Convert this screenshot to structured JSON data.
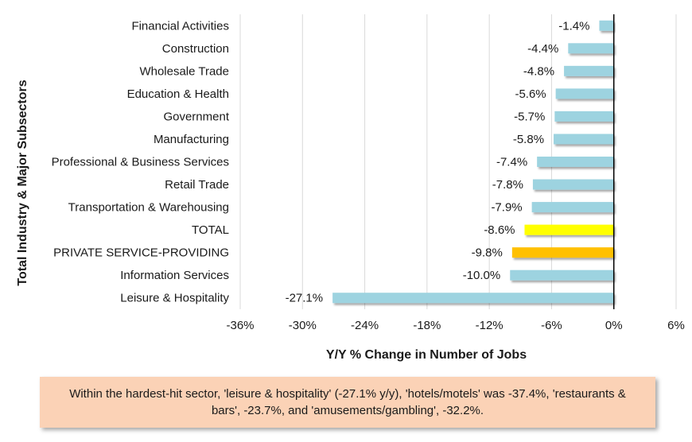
{
  "chart_data": {
    "type": "bar",
    "orientation": "horizontal",
    "categories": [
      "Financial Activities",
      "Construction",
      "Wholesale Trade",
      "Education & Health",
      "Government",
      "Manufacturing",
      "Professional & Business Services",
      "Retail Trade",
      "Transportation & Warehousing",
      "TOTAL",
      "PRIVATE SERVICE-PROVIDING",
      "Information Services",
      "Leisure & Hospitality"
    ],
    "values": [
      -1.4,
      -4.4,
      -4.8,
      -5.6,
      -5.7,
      -5.8,
      -7.4,
      -7.8,
      -7.9,
      -8.6,
      -9.8,
      -10.0,
      -27.1
    ],
    "data_labels": [
      "-1.4%",
      "-4.4%",
      "-4.8%",
      "-5.6%",
      "-5.7%",
      "-5.8%",
      "-7.4%",
      "-7.8%",
      "-7.9%",
      "-8.6%",
      "-9.8%",
      "-10.0%",
      "-27.1%"
    ],
    "bar_colors": [
      "#9dd3e0",
      "#9dd3e0",
      "#9dd3e0",
      "#9dd3e0",
      "#9dd3e0",
      "#9dd3e0",
      "#9dd3e0",
      "#9dd3e0",
      "#9dd3e0",
      "#ffff00",
      "#ffc000",
      "#9dd3e0",
      "#9dd3e0"
    ],
    "xlim": [
      -36,
      6
    ],
    "xticks": [
      -36,
      -30,
      -24,
      -18,
      -12,
      -6,
      0,
      6
    ],
    "xtick_labels": [
      "-36%",
      "-30%",
      "-24%",
      "-18%",
      "-12%",
      "-6%",
      "0%",
      "6%"
    ],
    "xlabel": "Y/Y % Change in Number of Jobs",
    "ylabel": "Total Industry & Major Subsectors",
    "grid": true
  },
  "note": "Within the hardest-hit sector, 'leisure & hospitality' (-27.1% y/y), 'hotels/motels' was -37.4%, 'restaurants & bars', -23.7%, and 'amusements/gambling', -32.2%."
}
